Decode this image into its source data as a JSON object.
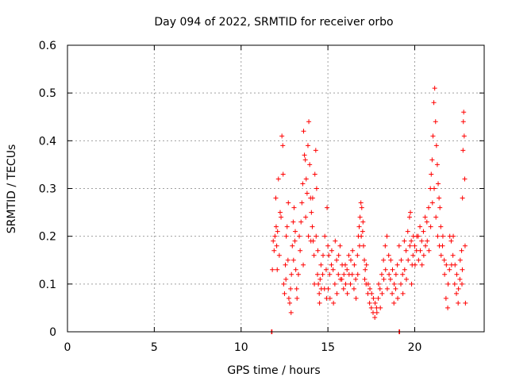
{
  "chart_data": {
    "type": "scatter",
    "title": "Day 094 of 2022, SRMTID for receiver orbo",
    "xlabel": "GPS time / hours",
    "ylabel": "SRMTID / TECUs",
    "xlim": [
      0,
      24
    ],
    "ylim": [
      0,
      0.6
    ],
    "xticks": [
      0,
      5,
      10,
      15,
      20
    ],
    "yticks": [
      0,
      0.1,
      0.2,
      0.3,
      0.4,
      0.5,
      0.6
    ],
    "xtick_labels": [
      "0",
      "5",
      "10",
      "15",
      "20"
    ],
    "ytick_labels": [
      "0",
      "0.1",
      "0.2",
      "0.3",
      "0.4",
      "0.5",
      "0.6"
    ],
    "grid": true,
    "marker": "+",
    "series": [
      {
        "name": "SRMTID",
        "color": "#ff0000",
        "points": [
          [
            11.75,
            0.0
          ],
          [
            11.78,
            0.0
          ],
          [
            19.1,
            0.0
          ],
          [
            19.13,
            0.0
          ],
          [
            11.8,
            0.13
          ],
          [
            11.85,
            0.19
          ],
          [
            11.9,
            0.17
          ],
          [
            11.95,
            0.2
          ],
          [
            12.0,
            0.28
          ],
          [
            12.05,
            0.18
          ],
          [
            12.1,
            0.21
          ],
          [
            12.15,
            0.32
          ],
          [
            12.2,
            0.16
          ],
          [
            12.3,
            0.24
          ],
          [
            12.35,
            0.41
          ],
          [
            12.4,
            0.39
          ],
          [
            12.45,
            0.1
          ],
          [
            12.5,
            0.08
          ],
          [
            12.55,
            0.14
          ],
          [
            12.6,
            0.2
          ],
          [
            12.65,
            0.22
          ],
          [
            12.7,
            0.15
          ],
          [
            12.75,
            0.07
          ],
          [
            12.8,
            0.06
          ],
          [
            12.85,
            0.09
          ],
          [
            12.9,
            0.12
          ],
          [
            12.95,
            0.18
          ],
          [
            13.0,
            0.23
          ],
          [
            13.05,
            0.26
          ],
          [
            13.1,
            0.19
          ],
          [
            13.15,
            0.13
          ],
          [
            13.2,
            0.09
          ],
          [
            13.3,
            0.12
          ],
          [
            13.4,
            0.17
          ],
          [
            13.5,
            0.27
          ],
          [
            13.55,
            0.31
          ],
          [
            13.6,
            0.42
          ],
          [
            13.65,
            0.37
          ],
          [
            13.7,
            0.36
          ],
          [
            13.75,
            0.32
          ],
          [
            13.8,
            0.29
          ],
          [
            13.85,
            0.39
          ],
          [
            13.9,
            0.44
          ],
          [
            13.95,
            0.35
          ],
          [
            14.0,
            0.28
          ],
          [
            14.05,
            0.25
          ],
          [
            14.1,
            0.22
          ],
          [
            14.15,
            0.19
          ],
          [
            14.2,
            0.16
          ],
          [
            14.25,
            0.33
          ],
          [
            14.3,
            0.38
          ],
          [
            14.35,
            0.3
          ],
          [
            14.4,
            0.12
          ],
          [
            14.45,
            0.1
          ],
          [
            14.5,
            0.08
          ],
          [
            14.55,
            0.11
          ],
          [
            14.6,
            0.14
          ],
          [
            14.7,
            0.12
          ],
          [
            14.8,
            0.09
          ],
          [
            14.9,
            0.13
          ],
          [
            14.95,
            0.26
          ],
          [
            15.0,
            0.18
          ],
          [
            15.05,
            0.16
          ],
          [
            15.1,
            0.12
          ],
          [
            15.2,
            0.14
          ],
          [
            15.3,
            0.13
          ],
          [
            15.4,
            0.1
          ],
          [
            15.5,
            0.15
          ],
          [
            15.6,
            0.12
          ],
          [
            15.7,
            0.18
          ],
          [
            15.8,
            0.11
          ],
          [
            15.9,
            0.09
          ],
          [
            16.0,
            0.14
          ],
          [
            16.1,
            0.13
          ],
          [
            16.2,
            0.16
          ],
          [
            16.3,
            0.1
          ],
          [
            16.4,
            0.12
          ],
          [
            16.5,
            0.09
          ],
          [
            16.6,
            0.11
          ],
          [
            16.7,
            0.16
          ],
          [
            16.75,
            0.2
          ],
          [
            16.8,
            0.22
          ],
          [
            16.85,
            0.24
          ],
          [
            16.9,
            0.27
          ],
          [
            16.95,
            0.26
          ],
          [
            17.0,
            0.21
          ],
          [
            17.05,
            0.18
          ],
          [
            17.1,
            0.15
          ],
          [
            17.15,
            0.13
          ],
          [
            17.2,
            0.1
          ],
          [
            17.3,
            0.08
          ],
          [
            17.4,
            0.06
          ],
          [
            17.5,
            0.05
          ],
          [
            17.6,
            0.04
          ],
          [
            17.7,
            0.03
          ],
          [
            17.8,
            0.05
          ],
          [
            17.9,
            0.07
          ],
          [
            18.0,
            0.09
          ],
          [
            18.1,
            0.12
          ],
          [
            18.2,
            0.15
          ],
          [
            18.3,
            0.18
          ],
          [
            18.4,
            0.2
          ],
          [
            18.5,
            0.16
          ],
          [
            18.6,
            0.11
          ],
          [
            18.7,
            0.08
          ],
          [
            18.8,
            0.06
          ],
          [
            18.9,
            0.09
          ],
          [
            19.0,
            0.14
          ],
          [
            19.1,
            0.18
          ],
          [
            19.2,
            0.1
          ],
          [
            19.3,
            0.12
          ],
          [
            19.4,
            0.19
          ],
          [
            19.5,
            0.17
          ],
          [
            19.6,
            0.21
          ],
          [
            19.7,
            0.24
          ],
          [
            19.75,
            0.25
          ],
          [
            19.8,
            0.19
          ],
          [
            19.85,
            0.14
          ],
          [
            19.9,
            0.16
          ],
          [
            20.0,
            0.18
          ],
          [
            20.1,
            0.17
          ],
          [
            20.2,
            0.2
          ],
          [
            20.3,
            0.22
          ],
          [
            20.4,
            0.19
          ],
          [
            20.5,
            0.21
          ],
          [
            20.6,
            0.24
          ],
          [
            20.7,
            0.23
          ],
          [
            20.8,
            0.26
          ],
          [
            20.9,
            0.3
          ],
          [
            20.95,
            0.33
          ],
          [
            21.0,
            0.36
          ],
          [
            21.05,
            0.41
          ],
          [
            21.1,
            0.48
          ],
          [
            21.15,
            0.51
          ],
          [
            21.2,
            0.44
          ],
          [
            21.25,
            0.39
          ],
          [
            21.3,
            0.35
          ],
          [
            21.35,
            0.31
          ],
          [
            21.4,
            0.28
          ],
          [
            21.45,
            0.26
          ],
          [
            21.5,
            0.22
          ],
          [
            21.6,
            0.18
          ],
          [
            21.7,
            0.15
          ],
          [
            21.8,
            0.07
          ],
          [
            21.9,
            0.05
          ],
          [
            22.0,
            0.13
          ],
          [
            22.1,
            0.19
          ],
          [
            22.2,
            0.16
          ],
          [
            22.3,
            0.1
          ],
          [
            22.4,
            0.08
          ],
          [
            22.5,
            0.06
          ],
          [
            22.6,
            0.11
          ],
          [
            22.7,
            0.17
          ],
          [
            22.75,
            0.28
          ],
          [
            22.78,
            0.38
          ],
          [
            22.8,
            0.44
          ],
          [
            22.82,
            0.46
          ],
          [
            22.85,
            0.41
          ],
          [
            22.88,
            0.32
          ],
          [
            22.9,
            0.18
          ],
          [
            22.92,
            0.06
          ],
          [
            12.02,
            0.22
          ],
          [
            12.08,
            0.13
          ],
          [
            12.25,
            0.25
          ],
          [
            12.42,
            0.33
          ],
          [
            12.58,
            0.11
          ],
          [
            12.72,
            0.27
          ],
          [
            12.88,
            0.04
          ],
          [
            13.02,
            0.15
          ],
          [
            13.12,
            0.21
          ],
          [
            13.22,
            0.07
          ],
          [
            13.35,
            0.2
          ],
          [
            13.45,
            0.23
          ],
          [
            13.58,
            0.14
          ],
          [
            13.72,
            0.24
          ],
          [
            13.88,
            0.2
          ],
          [
            14.02,
            0.19
          ],
          [
            14.12,
            0.28
          ],
          [
            14.22,
            0.1
          ],
          [
            14.32,
            0.2
          ],
          [
            14.42,
            0.17
          ],
          [
            14.52,
            0.06
          ],
          [
            14.62,
            0.09
          ],
          [
            14.72,
            0.16
          ],
          [
            14.82,
            0.2
          ],
          [
            14.92,
            0.07
          ],
          [
            15.02,
            0.09
          ],
          [
            15.12,
            0.07
          ],
          [
            15.22,
            0.17
          ],
          [
            15.32,
            0.06
          ],
          [
            15.42,
            0.19
          ],
          [
            15.52,
            0.08
          ],
          [
            15.62,
            0.16
          ],
          [
            15.72,
            0.11
          ],
          [
            15.82,
            0.14
          ],
          [
            15.92,
            0.12
          ],
          [
            16.02,
            0.1
          ],
          [
            16.12,
            0.08
          ],
          [
            16.22,
            0.12
          ],
          [
            16.32,
            0.15
          ],
          [
            16.42,
            0.17
          ],
          [
            16.52,
            0.14
          ],
          [
            16.62,
            0.07
          ],
          [
            16.72,
            0.12
          ],
          [
            16.82,
            0.18
          ],
          [
            16.92,
            0.2
          ],
          [
            17.02,
            0.23
          ],
          [
            17.12,
            0.11
          ],
          [
            17.22,
            0.14
          ],
          [
            17.32,
            0.1
          ],
          [
            17.42,
            0.09
          ],
          [
            17.52,
            0.08
          ],
          [
            17.62,
            0.07
          ],
          [
            17.72,
            0.06
          ],
          [
            17.82,
            0.04
          ],
          [
            17.92,
            0.1
          ],
          [
            18.02,
            0.05
          ],
          [
            18.12,
            0.08
          ],
          [
            18.22,
            0.11
          ],
          [
            18.32,
            0.13
          ],
          [
            18.42,
            0.09
          ],
          [
            18.52,
            0.12
          ],
          [
            18.62,
            0.15
          ],
          [
            18.72,
            0.13
          ],
          [
            18.82,
            0.1
          ],
          [
            18.92,
            0.12
          ],
          [
            19.02,
            0.07
          ],
          [
            19.22,
            0.15
          ],
          [
            19.32,
            0.08
          ],
          [
            19.42,
            0.13
          ],
          [
            19.52,
            0.11
          ],
          [
            19.62,
            0.15
          ],
          [
            19.72,
            0.18
          ],
          [
            19.82,
            0.1
          ],
          [
            19.92,
            0.2
          ],
          [
            20.02,
            0.14
          ],
          [
            20.12,
            0.2
          ],
          [
            20.22,
            0.15
          ],
          [
            20.32,
            0.17
          ],
          [
            20.42,
            0.14
          ],
          [
            20.52,
            0.16
          ],
          [
            20.62,
            0.18
          ],
          [
            20.72,
            0.19
          ],
          [
            20.82,
            0.17
          ],
          [
            20.92,
            0.22
          ],
          [
            21.02,
            0.27
          ],
          [
            21.12,
            0.3
          ],
          [
            21.22,
            0.24
          ],
          [
            21.32,
            0.2
          ],
          [
            21.42,
            0.18
          ],
          [
            21.52,
            0.16
          ],
          [
            21.62,
            0.2
          ],
          [
            21.72,
            0.12
          ],
          [
            21.82,
            0.14
          ],
          [
            21.92,
            0.1
          ],
          [
            22.02,
            0.2
          ],
          [
            22.12,
            0.14
          ],
          [
            22.22,
            0.2
          ],
          [
            22.32,
            0.14
          ],
          [
            22.42,
            0.12
          ],
          [
            22.52,
            0.09
          ],
          [
            22.62,
            0.15
          ],
          [
            22.72,
            0.1
          ],
          [
            22.74,
            0.13
          ]
        ]
      }
    ]
  }
}
